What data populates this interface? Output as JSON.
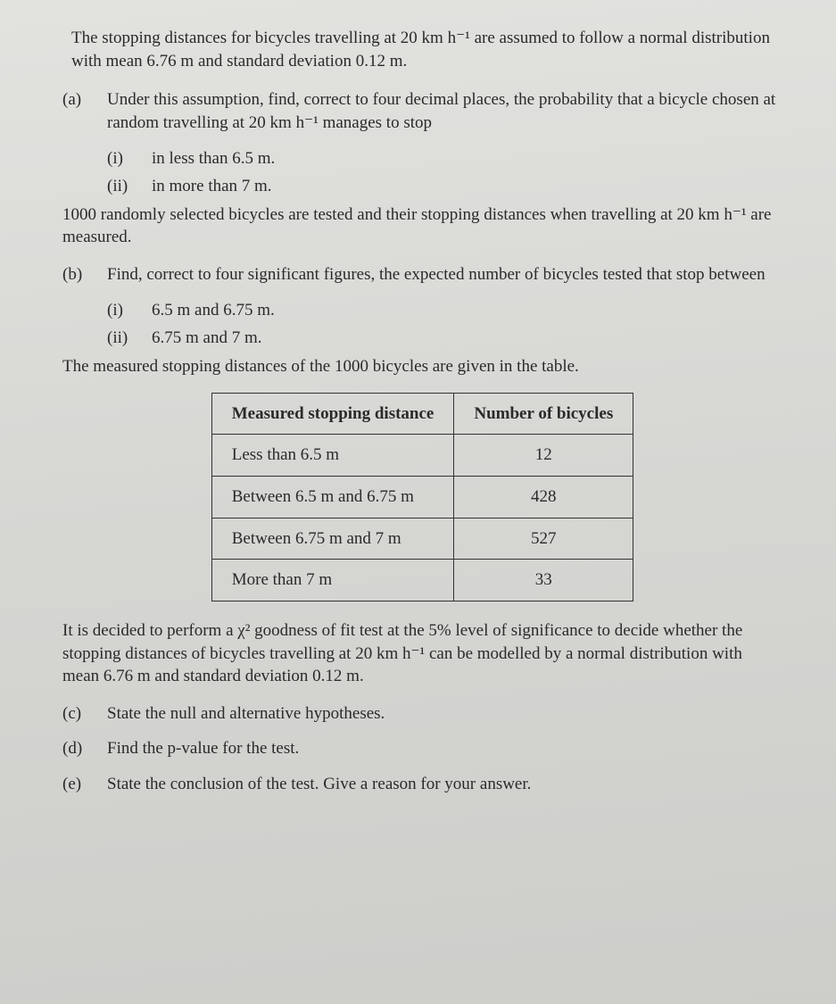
{
  "intro": "The stopping distances for bicycles travelling at 20 km h⁻¹ are assumed to follow a normal distribution with mean 6.76 m and standard deviation 0.12 m.",
  "a": {
    "label": "(a)",
    "text": "Under this assumption, find, correct to four decimal places, the probability that a bicycle chosen at random travelling at 20 km h⁻¹ manages to stop",
    "i": {
      "label": "(i)",
      "text": "in less than 6.5 m."
    },
    "ii": {
      "label": "(ii)",
      "text": "in more than 7 m."
    }
  },
  "mid1": "1000 randomly selected bicycles are tested and their stopping distances when travelling at 20 km h⁻¹ are measured.",
  "b": {
    "label": "(b)",
    "text": "Find, correct to four significant figures, the expected number of bicycles tested that stop between",
    "i": {
      "label": "(i)",
      "text": "6.5 m and 6.75 m."
    },
    "ii": {
      "label": "(ii)",
      "text": "6.75 m and 7 m."
    }
  },
  "mid2": "The measured stopping distances of the 1000 bicycles are given in the table.",
  "table": {
    "headers": [
      "Measured stopping distance",
      "Number of bicycles"
    ],
    "rows": [
      [
        "Less than 6.5 m",
        "12"
      ],
      [
        "Between 6.5 m and 6.75 m",
        "428"
      ],
      [
        "Between 6.75 m and 7 m",
        "527"
      ],
      [
        "More than 7 m",
        "33"
      ]
    ]
  },
  "mid3": "It is decided to perform a χ² goodness of fit test at the 5% level of significance to decide whether the stopping distances of bicycles travelling at 20 km h⁻¹ can be modelled by a normal distribution with mean 6.76 m and standard deviation 0.12 m.",
  "c": {
    "label": "(c)",
    "text": "State the null and alternative hypotheses."
  },
  "d": {
    "label": "(d)",
    "text": "Find the p-value for the test."
  },
  "e": {
    "label": "(e)",
    "text": "State the conclusion of the test. Give a reason for your answer."
  }
}
